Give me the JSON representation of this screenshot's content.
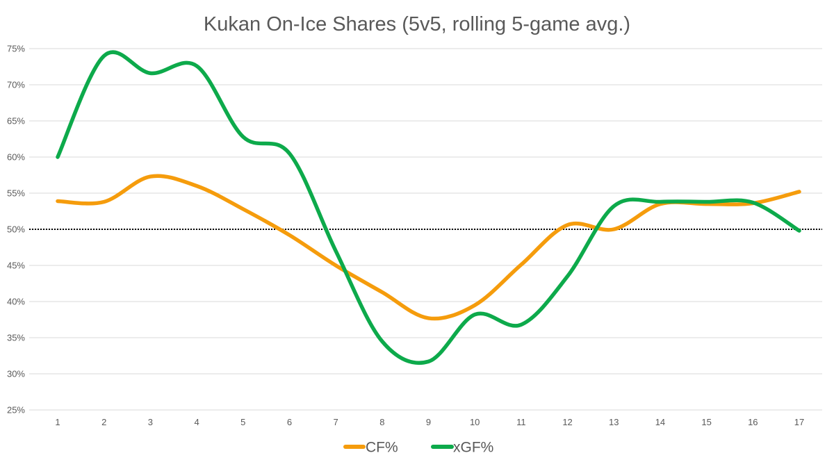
{
  "chart_data": {
    "type": "line",
    "title": "Kukan On-Ice Shares (5v5, rolling 5-game avg.)",
    "xlabel": "",
    "ylabel": "",
    "categories": [
      "1",
      "2",
      "3",
      "4",
      "5",
      "6",
      "7",
      "8",
      "9",
      "10",
      "11",
      "12",
      "13",
      "14",
      "15",
      "16",
      "17"
    ],
    "ylim": [
      0.25,
      0.75
    ],
    "yticks": [
      "25%",
      "30%",
      "35%",
      "40%",
      "45%",
      "50%",
      "55%",
      "60%",
      "65%",
      "70%",
      "75%"
    ],
    "reference_line": 0.5,
    "grid": true,
    "legend_position": "bottom",
    "smooth": true,
    "series": [
      {
        "name": "CF%",
        "color": "#F59C0C",
        "values": [
          0.539,
          0.538,
          0.573,
          0.56,
          0.528,
          0.492,
          0.45,
          0.413,
          0.377,
          0.395,
          0.451,
          0.506,
          0.5,
          0.535,
          0.535,
          0.536,
          0.552
        ]
      },
      {
        "name": "xGF%",
        "color": "#0DAA4B",
        "values": [
          0.6,
          0.74,
          0.716,
          0.726,
          0.628,
          0.605,
          0.47,
          0.345,
          0.317,
          0.382,
          0.368,
          0.435,
          0.532,
          0.538,
          0.538,
          0.537,
          0.498
        ]
      }
    ]
  }
}
